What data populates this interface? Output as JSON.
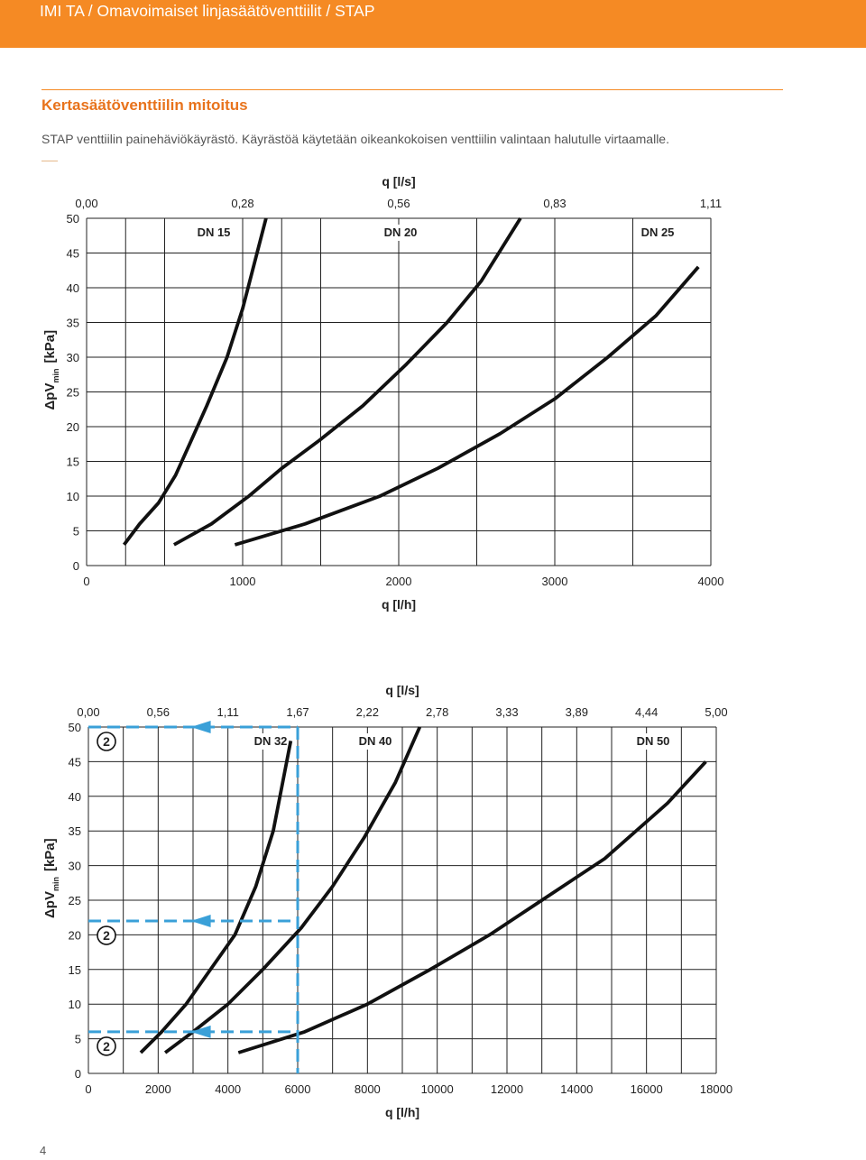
{
  "header": {
    "breadcrumb": "IMI TA / Omavoimaiset linjasäätöventtiilit / STAP",
    "title": "Kertasäätöventtiilin mitoitus",
    "description": "STAP venttiilin painehäviökäyrästö. Käyrästöä käytetään oikeankokoisen venttiilin valintaan halutulle virtaamalle.",
    "page_number": "4"
  },
  "colors": {
    "orange": "#f58a24",
    "title_orange": "#e8731c",
    "marker_blue": "#3aa0d8"
  },
  "chart_data": [
    {
      "type": "line",
      "x_top_label": "q [l/s]",
      "x_top_ticks": [
        "0,00",
        "0,28",
        "0,56",
        "0,83",
        "1,11"
      ],
      "xlabel": "q [l/h]",
      "ylabel": "ΔpV",
      "ylabel_sub": "min",
      "ylabel_unit": "[kPa]",
      "xlim": [
        0,
        4000
      ],
      "ylim": [
        0,
        50
      ],
      "x_ticks": [
        0,
        1000,
        2000,
        3000,
        4000
      ],
      "y_ticks": [
        0,
        5,
        10,
        15,
        20,
        25,
        30,
        35,
        40,
        45,
        50
      ],
      "grid": true,
      "series": [
        {
          "name": "DN 15",
          "x": [
            240,
            340,
            460,
            570,
            660,
            770,
            900,
            1000,
            1150
          ],
          "y": [
            3,
            6,
            9,
            13,
            17.5,
            23,
            30,
            37,
            50
          ]
        },
        {
          "name": "DN 20",
          "x": [
            560,
            800,
            1040,
            1250,
            1490,
            1770,
            2050,
            2310,
            2530,
            2780
          ],
          "y": [
            3,
            6,
            10,
            14,
            18,
            23,
            29,
            35,
            41,
            50
          ]
        },
        {
          "name": "DN 25",
          "x": [
            950,
            1400,
            1880,
            2250,
            2650,
            3000,
            3340,
            3650,
            3920
          ],
          "y": [
            3,
            6,
            10,
            14,
            19,
            24,
            30,
            36,
            43
          ]
        }
      ]
    },
    {
      "type": "line",
      "x_top_label": "q [l/s]",
      "x_top_ticks": [
        "0,00",
        "0,56",
        "1,11",
        "1,67",
        "2,22",
        "2,78",
        "3,33",
        "3,89",
        "4,44",
        "5,00"
      ],
      "xlabel": "q [l/h]",
      "ylabel": "ΔpV",
      "ylabel_sub": "min",
      "ylabel_unit": "[kPa]",
      "xlim": [
        0,
        18000
      ],
      "ylim": [
        0,
        50
      ],
      "x_ticks": [
        0,
        2000,
        4000,
        6000,
        8000,
        10000,
        12000,
        14000,
        16000,
        18000
      ],
      "y_ticks": [
        0,
        5,
        10,
        15,
        20,
        25,
        30,
        35,
        40,
        45,
        50
      ],
      "grid": true,
      "series": [
        {
          "name": "DN 32",
          "x": [
            1500,
            2100,
            2800,
            3500,
            4200,
            4800,
            5300,
            5800
          ],
          "y": [
            3,
            6,
            10,
            15,
            20,
            27,
            35,
            48
          ]
        },
        {
          "name": "DN 40",
          "x": [
            2200,
            3000,
            4000,
            5000,
            6100,
            7000,
            7900,
            8800,
            9500
          ],
          "y": [
            3,
            6,
            10,
            15,
            21,
            27,
            34,
            42,
            50
          ]
        },
        {
          "name": "DN 50",
          "x": [
            4300,
            6200,
            8000,
            9800,
            11500,
            13000,
            14800,
            16600,
            17700
          ],
          "y": [
            3,
            6,
            10,
            15,
            20,
            25,
            31,
            39,
            45
          ]
        }
      ],
      "annotations": [
        {
          "label": "2",
          "flow": 6000,
          "dp": 50
        },
        {
          "label": "2",
          "flow": 6000,
          "dp": 22
        },
        {
          "label": "2",
          "flow": 6000,
          "dp": 6
        }
      ]
    }
  ]
}
